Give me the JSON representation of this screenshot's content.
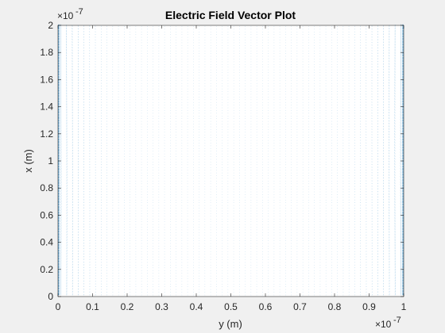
{
  "chart_data": {
    "type": "quiver",
    "title": "Electric Field Vector Plot",
    "xlabel": "y (m)",
    "ylabel": "x (m)",
    "xlim": [
      0,
      1e-07
    ],
    "ylim": [
      0,
      2e-07
    ],
    "x_exponent": "×10",
    "x_exponent_power": "-7",
    "y_exponent": "×10",
    "y_exponent_power": "-7",
    "xticks": [
      0,
      0.1,
      0.2,
      0.3,
      0.4,
      0.5,
      0.6,
      0.7,
      0.8,
      0.9,
      1
    ],
    "xtick_labels": [
      "0",
      "0.1",
      "0.2",
      "0.3",
      "0.4",
      "0.5",
      "0.6",
      "0.7",
      "0.8",
      "0.9",
      "1"
    ],
    "yticks": [
      0,
      0.2,
      0.4,
      0.6,
      0.8,
      1,
      1.2,
      1.4,
      1.6,
      1.8,
      2
    ],
    "ytick_labels": [
      "0",
      "0.2",
      "0.4",
      "0.6",
      "0.8",
      "1",
      "1.2",
      "1.4",
      "1.6",
      "1.8",
      "2"
    ],
    "grid": false,
    "legend": "none",
    "vector_color": "#0072bd",
    "vector_grid": {
      "nx": 60,
      "ny": 100
    }
  }
}
